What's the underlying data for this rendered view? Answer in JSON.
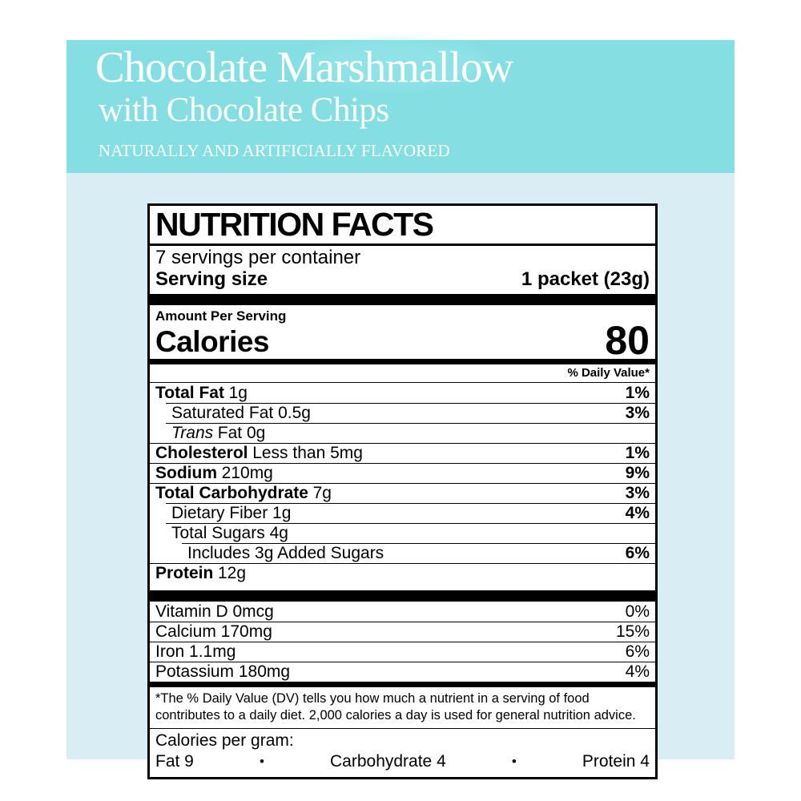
{
  "product": {
    "title_line1": "Chocolate Marshmallow",
    "title_line2": "with Chocolate Chips",
    "tagline": "NATURALLY AND ARTIFICIALLY FLAVORED"
  },
  "colors": {
    "hero_bg": "#84dee2",
    "package_bg": "#d9eef4",
    "label_bg": "#ffffff",
    "text": "#000000",
    "hero_text": "#ffffff"
  },
  "nutrition": {
    "title": "NUTRITION FACTS",
    "servings_per_container": "7 servings per container",
    "serving_size_label": "Serving size",
    "serving_size_value": "1 packet (23g)",
    "amount_per_serving": "Amount Per Serving",
    "calories_label": "Calories",
    "calories_value": "80",
    "daily_value_header": "% Daily Value*",
    "rows": [
      {
        "bold": "Total Fat",
        "plain": "1g",
        "pct": "1%"
      },
      {
        "plain": "Saturated Fat 0.5g",
        "pct": "3%"
      },
      {
        "italic": "Trans",
        "plain": "Fat 0g",
        "pct": ""
      },
      {
        "bold": "Cholesterol",
        "plain": "Less than 5mg",
        "pct": "1%"
      },
      {
        "bold": "Sodium",
        "plain": "210mg",
        "pct": "9%"
      },
      {
        "bold": "Total Carbohydrate",
        "plain": "7g",
        "pct": "3%"
      },
      {
        "plain": "Dietary Fiber 1g",
        "pct": "4%"
      },
      {
        "plain": "Total Sugars 4g",
        "pct": ""
      },
      {
        "plain": "Includes 3g Added Sugars",
        "pct": "6%"
      },
      {
        "bold": "Protein",
        "plain": "12g",
        "pct": ""
      }
    ],
    "vitamins": [
      {
        "plain": "Vitamin D 0mcg",
        "pct": "0%"
      },
      {
        "plain": "Calcium 170mg",
        "pct": "15%"
      },
      {
        "plain": "Iron 1.1mg",
        "pct": "6%"
      },
      {
        "plain": "Potassium 180mg",
        "pct": "4%"
      }
    ],
    "footnote": "*The % Daily Value (DV) tells you how much a nutrient in a serving of food contributes to a daily diet. 2,000 calories a day is used for general nutrition advice.",
    "calories_per_gram_label": "Calories per gram:",
    "cpg_fat": "Fat 9",
    "cpg_carb": "Carbohydrate 4",
    "cpg_protein": "Protein 4",
    "bullet": "•"
  }
}
